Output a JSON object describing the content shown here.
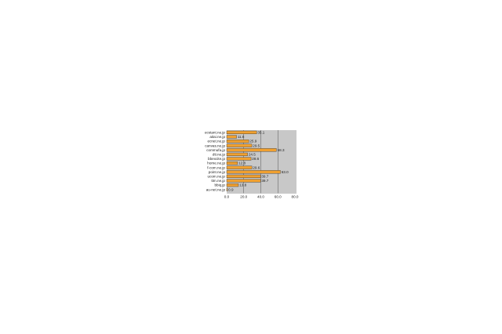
{
  "chart_data": {
    "type": "bar",
    "orientation": "horizontal",
    "categories": [
      "ecstant.ne.jp",
      "aitai.ne.jp",
      "ecnet.ne.jp",
      "canvas.ne.jp",
      "commufa.jp",
      "dti.ne.jp",
      "bbexcite.jp",
      "home.ne.jp",
      "f-com.ne.jp",
      "point.ne.jp",
      "ucom.ne.jp",
      "ttm.ne.jp",
      "bbiq.jp",
      "au-net.ne.jp"
    ],
    "values": [
      35.1,
      11.6,
      25.9,
      29.5,
      58.3,
      24.5,
      28.6,
      12.8,
      29.6,
      63.0,
      39.7,
      39.7,
      13.8,
      0.9
    ],
    "value_labels": [
      "35.1",
      "11.6",
      "25.9",
      "29.5",
      "58.3",
      "24.5",
      "28.6",
      "12.8",
      "29.6",
      "63.0",
      "39.7",
      "39.7",
      "13.8",
      "0.9"
    ],
    "xlim": [
      0,
      80
    ],
    "xticks": [
      "0.0",
      "20.0",
      "40.0",
      "60.0",
      "80.0"
    ],
    "grid": true,
    "colors": {
      "bar": "#f0a030",
      "bar_edge": "#333333",
      "plot_bg": "#c8c8c8",
      "grid": "#555555"
    }
  }
}
